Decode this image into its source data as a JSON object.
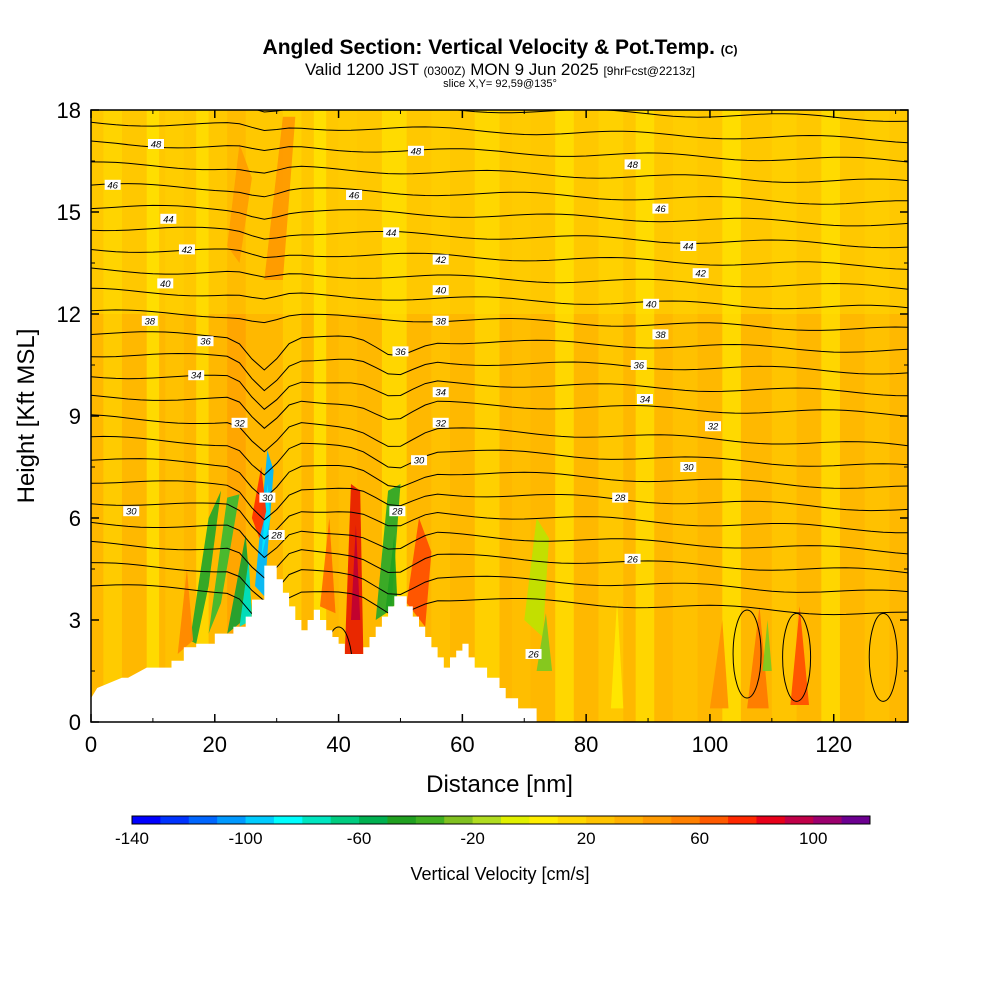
{
  "header": {
    "title": "Angled Section: Vertical Velocity & Pot.Temp.",
    "title_suffix": "(C)",
    "valid_prefix": "Valid 1200 JST",
    "valid_zulu": "(0300Z)",
    "valid_date": "MON 9 Jun 2025",
    "valid_fcst": "[9hrFcst@2213z]",
    "slice": "slice X,Y= 92,59@135°"
  },
  "chart_data": {
    "type": "heatmap",
    "title": "Angled Section: Vertical Velocity & Pot.Temp.",
    "xlabel": "Distance [nm]",
    "ylabel": "Height [Kft MSL]",
    "xlim": [
      0,
      132
    ],
    "ylim": [
      0,
      18
    ],
    "x_ticks": [
      "0",
      "20",
      "40",
      "60",
      "80",
      "100",
      "120"
    ],
    "y_ticks": [
      "0",
      "3",
      "6",
      "9",
      "12",
      "15",
      "18"
    ],
    "background_value_range": [
      0,
      20
    ],
    "colorbar": {
      "label": "Vertical Velocity [cm/s]",
      "ticks": [
        "-140",
        "-100",
        "-60",
        "-20",
        "20",
        "60",
        "100"
      ],
      "min": -140,
      "max": 110,
      "step": 10,
      "colors": [
        "#0000ff",
        "#0033ff",
        "#0066ff",
        "#0099ff",
        "#00ccff",
        "#00ffff",
        "#00e6c0",
        "#00cc80",
        "#00b050",
        "#20a020",
        "#40b020",
        "#80c020",
        "#b0dc20",
        "#e0f000",
        "#ffee00",
        "#ffd800",
        "#ffc400",
        "#ffb000",
        "#ff9a00",
        "#ff8000",
        "#ff5a00",
        "#ff2800",
        "#e8001a",
        "#c00048",
        "#9c006e",
        "#6c0090"
      ]
    },
    "contours": {
      "name": "Potential Temperature",
      "labels": [
        {
          "x": 10.5,
          "y": 17.0,
          "text": "48"
        },
        {
          "x": 52.5,
          "y": 16.8,
          "text": "48"
        },
        {
          "x": 87.5,
          "y": 16.4,
          "text": "48"
        },
        {
          "x": 3.5,
          "y": 15.8,
          "text": "46"
        },
        {
          "x": 42.5,
          "y": 15.5,
          "text": "46"
        },
        {
          "x": 92.0,
          "y": 15.1,
          "text": "46"
        },
        {
          "x": 12.5,
          "y": 14.8,
          "text": "44"
        },
        {
          "x": 48.5,
          "y": 14.4,
          "text": "44"
        },
        {
          "x": 96.5,
          "y": 14.0,
          "text": "44"
        },
        {
          "x": 15.5,
          "y": 13.9,
          "text": "42"
        },
        {
          "x": 56.5,
          "y": 13.6,
          "text": "42"
        },
        {
          "x": 98.5,
          "y": 13.2,
          "text": "42"
        },
        {
          "x": 12.0,
          "y": 12.9,
          "text": "40"
        },
        {
          "x": 56.5,
          "y": 12.7,
          "text": "40"
        },
        {
          "x": 90.5,
          "y": 12.3,
          "text": "40"
        },
        {
          "x": 9.5,
          "y": 11.8,
          "text": "38"
        },
        {
          "x": 56.5,
          "y": 11.8,
          "text": "38"
        },
        {
          "x": 92.0,
          "y": 11.4,
          "text": "38"
        },
        {
          "x": 18.5,
          "y": 11.2,
          "text": "36"
        },
        {
          "x": 50.0,
          "y": 10.9,
          "text": "36"
        },
        {
          "x": 88.5,
          "y": 10.5,
          "text": "36"
        },
        {
          "x": 17.0,
          "y": 10.2,
          "text": "34"
        },
        {
          "x": 56.5,
          "y": 9.7,
          "text": "34"
        },
        {
          "x": 89.5,
          "y": 9.5,
          "text": "34"
        },
        {
          "x": 24.0,
          "y": 8.8,
          "text": "32"
        },
        {
          "x": 56.5,
          "y": 8.8,
          "text": "32"
        },
        {
          "x": 100.5,
          "y": 8.7,
          "text": "32"
        },
        {
          "x": 53.0,
          "y": 7.7,
          "text": "30"
        },
        {
          "x": 96.5,
          "y": 7.5,
          "text": "30"
        },
        {
          "x": 6.5,
          "y": 6.2,
          "text": "30"
        },
        {
          "x": 28.5,
          "y": 6.6,
          "text": "30"
        },
        {
          "x": 49.5,
          "y": 6.2,
          "text": "28"
        },
        {
          "x": 85.5,
          "y": 6.6,
          "text": "28"
        },
        {
          "x": 30.0,
          "y": 5.5,
          "text": "28"
        },
        {
          "x": 87.5,
          "y": 4.8,
          "text": "26"
        },
        {
          "x": 71.5,
          "y": 2.0,
          "text": "26"
        }
      ]
    },
    "terrain": [
      [
        0,
        0.7
      ],
      [
        1,
        1.0
      ],
      [
        5,
        1.3
      ],
      [
        6,
        1.3
      ],
      [
        6,
        1.3
      ],
      [
        7,
        1.4
      ],
      [
        8,
        1.5
      ],
      [
        9,
        1.6
      ],
      [
        13,
        1.6
      ],
      [
        13,
        1.8
      ],
      [
        15,
        1.8
      ],
      [
        15,
        2.2
      ],
      [
        17,
        2.2
      ],
      [
        17,
        2.3
      ],
      [
        20,
        2.3
      ],
      [
        20,
        2.6
      ],
      [
        23,
        2.6
      ],
      [
        23,
        2.8
      ],
      [
        25,
        2.8
      ],
      [
        25,
        3.1
      ],
      [
        26,
        3.1
      ],
      [
        26,
        3.6
      ],
      [
        28,
        3.6
      ],
      [
        28,
        4.6
      ],
      [
        30,
        4.6
      ],
      [
        30,
        4.2
      ],
      [
        31,
        4.2
      ],
      [
        31,
        3.8
      ],
      [
        32,
        3.8
      ],
      [
        32,
        3.4
      ],
      [
        33,
        3.4
      ],
      [
        33,
        3.0
      ],
      [
        34,
        3.0
      ],
      [
        34,
        2.7
      ],
      [
        35,
        2.7
      ],
      [
        35,
        3.0
      ],
      [
        36,
        3.0
      ],
      [
        36,
        3.3
      ],
      [
        37,
        3.3
      ],
      [
        37,
        3.0
      ],
      [
        38,
        3.0
      ],
      [
        38,
        2.7
      ],
      [
        39,
        2.7
      ],
      [
        39,
        2.5
      ],
      [
        40,
        2.5
      ],
      [
        40,
        2.3
      ],
      [
        41,
        2.3
      ],
      [
        41,
        2.0
      ],
      [
        44,
        2.0
      ],
      [
        44,
        2.2
      ],
      [
        45,
        2.2
      ],
      [
        45,
        2.5
      ],
      [
        46,
        2.5
      ],
      [
        46,
        2.8
      ],
      [
        47,
        2.8
      ],
      [
        47,
        3.1
      ],
      [
        48,
        3.1
      ],
      [
        48,
        3.4
      ],
      [
        49,
        3.4
      ],
      [
        49,
        3.7
      ],
      [
        51,
        3.7
      ],
      [
        51,
        3.4
      ],
      [
        52,
        3.4
      ],
      [
        52,
        3.1
      ],
      [
        53,
        3.1
      ],
      [
        53,
        2.8
      ],
      [
        54,
        2.8
      ],
      [
        54,
        2.5
      ],
      [
        55,
        2.5
      ],
      [
        55,
        2.2
      ],
      [
        56,
        2.2
      ],
      [
        56,
        1.9
      ],
      [
        57,
        1.9
      ],
      [
        57,
        1.6
      ],
      [
        58,
        1.6
      ],
      [
        58,
        1.9
      ],
      [
        59,
        1.9
      ],
      [
        59,
        2.1
      ],
      [
        60,
        2.1
      ],
      [
        60,
        2.3
      ],
      [
        61,
        2.3
      ],
      [
        61,
        1.9
      ],
      [
        62,
        1.9
      ],
      [
        62,
        1.6
      ],
      [
        64,
        1.6
      ],
      [
        64,
        1.3
      ],
      [
        66,
        1.3
      ],
      [
        66,
        1.0
      ],
      [
        67,
        1.0
      ],
      [
        67,
        0.7
      ],
      [
        69,
        0.7
      ],
      [
        69,
        0.4
      ],
      [
        72,
        0.4
      ],
      [
        72,
        0.3
      ]
    ]
  }
}
